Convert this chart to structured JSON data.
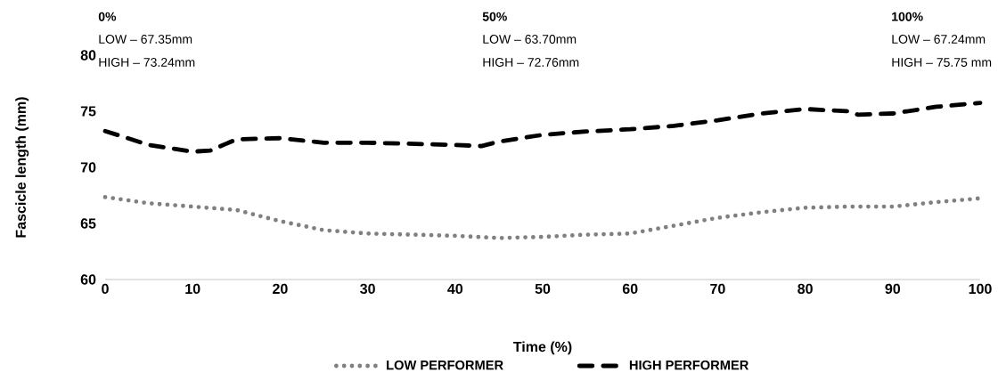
{
  "chart_data": {
    "type": "line",
    "xlabel": "Time (%)",
    "ylabel": "Fascicle length (mm)",
    "xlim": [
      0,
      100
    ],
    "xticks": [
      0,
      10,
      20,
      30,
      40,
      50,
      60,
      70,
      80,
      90,
      100
    ],
    "ylim": [
      60,
      80
    ],
    "yticks": [
      60,
      65,
      70,
      75,
      80
    ],
    "grid": false,
    "legend": "bottom",
    "annotations": [
      "0%",
      "LOW – 67.35mm",
      "HIGH – 73.24mm",
      "50%",
      "LOW – 63.70mm",
      "HIGH – 72.76mm",
      "100%",
      "LOW – 67.24mm",
      "HIGH – 75.75 mm"
    ],
    "series": [
      {
        "name": "LOW PERFORMER",
        "color": "#808080",
        "line_style": "dotted",
        "x": [
          0,
          5,
          10,
          15,
          20,
          25,
          30,
          35,
          40,
          45,
          50,
          55,
          60,
          65,
          70,
          75,
          80,
          85,
          90,
          95,
          100
        ],
        "values": [
          67.35,
          66.8,
          66.5,
          66.2,
          65.2,
          64.4,
          64.1,
          64.0,
          63.9,
          63.7,
          63.8,
          64.0,
          64.1,
          64.8,
          65.5,
          66.0,
          66.4,
          66.5,
          66.5,
          66.9,
          67.24
        ]
      },
      {
        "name": "HIGH PERFORMER",
        "color": "#000000",
        "line_style": "dashed",
        "x": [
          0,
          5,
          10,
          12,
          15,
          20,
          25,
          30,
          35,
          40,
          43,
          45,
          50,
          55,
          60,
          65,
          70,
          75,
          80,
          85,
          86,
          90,
          95,
          100
        ],
        "values": [
          73.24,
          72.0,
          71.4,
          71.5,
          72.5,
          72.6,
          72.2,
          72.2,
          72.1,
          72.0,
          71.9,
          72.3,
          72.9,
          73.2,
          73.4,
          73.7,
          74.2,
          74.8,
          75.2,
          75.0,
          74.7,
          74.8,
          75.4,
          75.75
        ]
      }
    ]
  }
}
